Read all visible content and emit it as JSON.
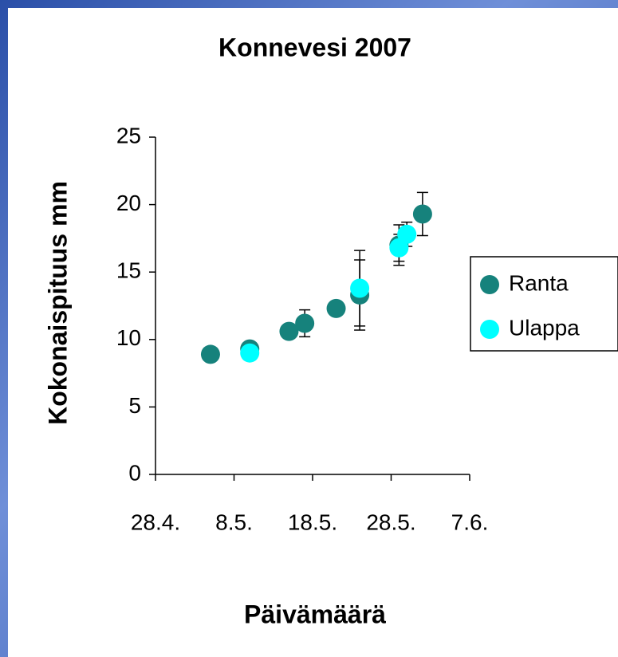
{
  "chart_data": {
    "type": "scatter",
    "title": "Konnevesi 2007",
    "x_label": "Päivämäärä",
    "y_label": "Kokonaispituus mm",
    "xlim": [
      118,
      158
    ],
    "xticks": [
      {
        "value": 118,
        "label": "28.4."
      },
      {
        "value": 128,
        "label": "8.5."
      },
      {
        "value": 138,
        "label": "18.5."
      },
      {
        "value": 148,
        "label": "28.5."
      },
      {
        "value": 158,
        "label": "7.6."
      }
    ],
    "ylim": [
      0,
      25
    ],
    "yticks": [
      0,
      5,
      10,
      15,
      20,
      25
    ],
    "series": [
      {
        "name": "Ranta",
        "color": "#16827c",
        "x": [
          125,
          130,
          135,
          137,
          141,
          144,
          149,
          152
        ],
        "values": [
          8.9,
          9.3,
          10.6,
          11.2,
          12.3,
          13.3,
          17.0,
          19.3
        ],
        "errors": [
          0.3,
          0.4,
          0.3,
          1.0,
          0.4,
          2.6,
          1.5,
          1.6
        ]
      },
      {
        "name": "Ulappa",
        "color": "#00ffff",
        "x": [
          130,
          144,
          149,
          150
        ],
        "values": [
          9.0,
          13.8,
          16.8,
          17.8
        ],
        "errors": [
          0.3,
          2.8,
          1.0,
          0.9
        ]
      }
    ]
  }
}
